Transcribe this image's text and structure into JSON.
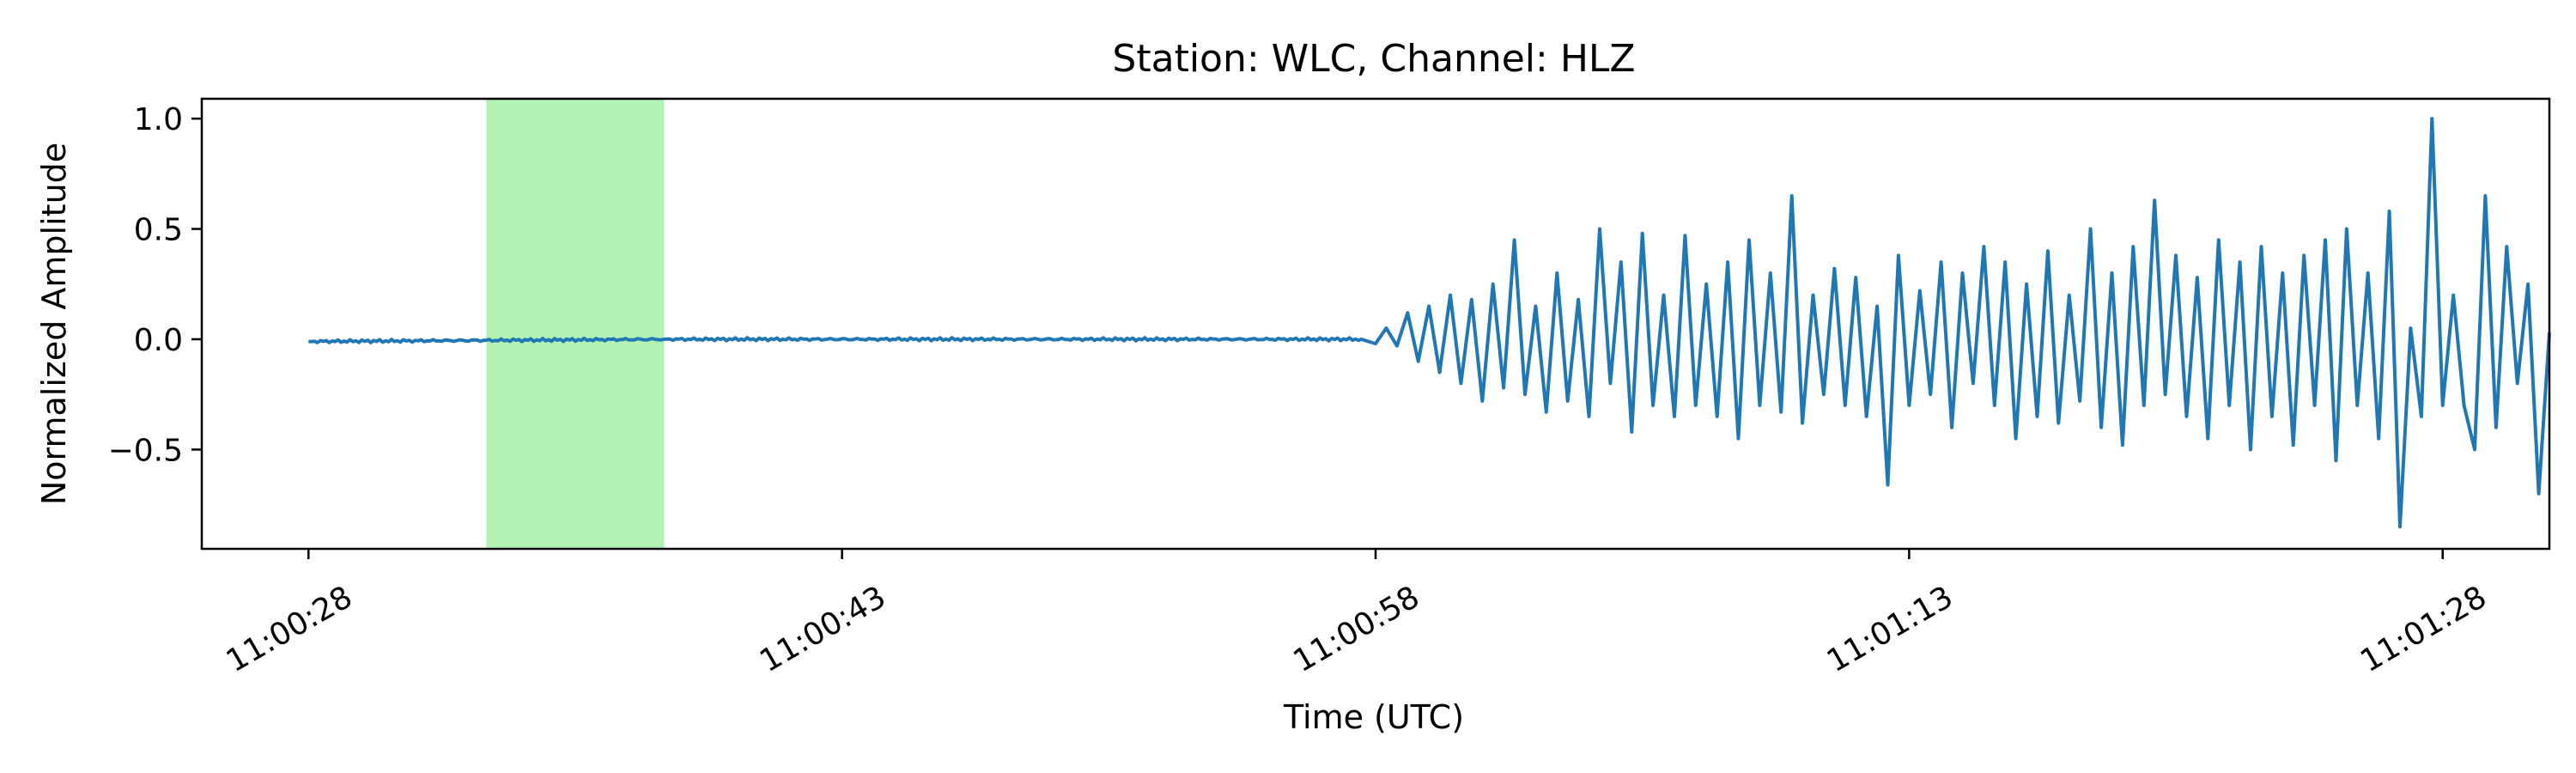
{
  "chart_data": {
    "type": "line",
    "title": "Station: WLC, Channel: HLZ",
    "xlabel": "Time (UTC)",
    "ylabel": "Normalized Amplitude",
    "x_unit": "seconds",
    "x_ticks": [
      {
        "t": 0,
        "label": "11:00:28"
      },
      {
        "t": 15,
        "label": "11:00:43"
      },
      {
        "t": 30,
        "label": "11:00:58"
      },
      {
        "t": 45,
        "label": "11:01:13"
      },
      {
        "t": 60,
        "label": "11:01:28"
      }
    ],
    "y_ticks": [
      {
        "v": 1.0,
        "label": "1.0"
      },
      {
        "v": 0.5,
        "label": "0.5"
      },
      {
        "v": 0.0,
        "label": "0.0"
      },
      {
        "v": -0.5,
        "label": "−0.5"
      }
    ],
    "xlim": [
      "11:00:25",
      "11:01:31"
    ],
    "ylim": [
      -0.95,
      1.09
    ],
    "grid": false,
    "highlight": {
      "x_start": "11:00:33",
      "x_end": "11:00:38",
      "color": "#b2f2b2"
    },
    "series": [
      {
        "color": "#1f77b4",
        "points": [
          [
            "11:00:28.0",
            -0.01
          ],
          [
            "11:00:38.0",
            0.0
          ],
          [
            "11:00:57.6",
            0.0
          ],
          [
            "11:00:58.0",
            -0.02
          ],
          [
            "11:00:58.3",
            0.05
          ],
          [
            "11:00:58.6",
            -0.03
          ],
          [
            "11:00:58.9",
            0.12
          ],
          [
            "11:00:59.2",
            -0.1
          ],
          [
            "11:00:59.5",
            0.15
          ],
          [
            "11:00:59.8",
            -0.15
          ],
          [
            "11:01:00.1",
            0.2
          ],
          [
            "11:01:00.4",
            -0.2
          ],
          [
            "11:01:00.7",
            0.18
          ],
          [
            "11:01:01.0",
            -0.28
          ],
          [
            "11:01:01.3",
            0.25
          ],
          [
            "11:01:01.6",
            -0.22
          ],
          [
            "11:01:01.9",
            0.45
          ],
          [
            "11:01:02.2",
            -0.25
          ],
          [
            "11:01:02.5",
            0.15
          ],
          [
            "11:01:02.8",
            -0.33
          ],
          [
            "11:01:03.1",
            0.3
          ],
          [
            "11:01:03.4",
            -0.28
          ],
          [
            "11:01:03.7",
            0.18
          ],
          [
            "11:01:04.0",
            -0.35
          ],
          [
            "11:01:04.3",
            0.5
          ],
          [
            "11:01:04.6",
            -0.2
          ],
          [
            "11:01:04.9",
            0.35
          ],
          [
            "11:01:05.2",
            -0.42
          ],
          [
            "11:01:05.5",
            0.48
          ],
          [
            "11:01:05.8",
            -0.3
          ],
          [
            "11:01:06.1",
            0.2
          ],
          [
            "11:01:06.4",
            -0.35
          ],
          [
            "11:01:06.7",
            0.47
          ],
          [
            "11:01:07.0",
            -0.3
          ],
          [
            "11:01:07.3",
            0.25
          ],
          [
            "11:01:07.6",
            -0.35
          ],
          [
            "11:01:07.9",
            0.35
          ],
          [
            "11:01:08.2",
            -0.45
          ],
          [
            "11:01:08.5",
            0.45
          ],
          [
            "11:01:08.8",
            -0.3
          ],
          [
            "11:01:09.1",
            0.3
          ],
          [
            "11:01:09.4",
            -0.33
          ],
          [
            "11:01:09.7",
            0.65
          ],
          [
            "11:01:10.0",
            -0.38
          ],
          [
            "11:01:10.3",
            0.2
          ],
          [
            "11:01:10.6",
            -0.25
          ],
          [
            "11:01:10.9",
            0.32
          ],
          [
            "11:01:11.2",
            -0.3
          ],
          [
            "11:01:11.5",
            0.28
          ],
          [
            "11:01:11.8",
            -0.35
          ],
          [
            "11:01:12.1",
            0.15
          ],
          [
            "11:01:12.4",
            -0.66
          ],
          [
            "11:01:12.7",
            0.38
          ],
          [
            "11:01:13.0",
            -0.3
          ],
          [
            "11:01:13.3",
            0.22
          ],
          [
            "11:01:13.6",
            -0.25
          ],
          [
            "11:01:13.9",
            0.35
          ],
          [
            "11:01:14.2",
            -0.4
          ],
          [
            "11:01:14.5",
            0.3
          ],
          [
            "11:01:14.8",
            -0.2
          ],
          [
            "11:01:15.1",
            0.42
          ],
          [
            "11:01:15.4",
            -0.3
          ],
          [
            "11:01:15.7",
            0.35
          ],
          [
            "11:01:16.0",
            -0.45
          ],
          [
            "11:01:16.3",
            0.25
          ],
          [
            "11:01:16.6",
            -0.35
          ],
          [
            "11:01:16.9",
            0.4
          ],
          [
            "11:01:17.2",
            -0.38
          ],
          [
            "11:01:17.5",
            0.2
          ],
          [
            "11:01:17.8",
            -0.28
          ],
          [
            "11:01:18.1",
            0.5
          ],
          [
            "11:01:18.4",
            -0.4
          ],
          [
            "11:01:18.7",
            0.3
          ],
          [
            "11:01:19.0",
            -0.48
          ],
          [
            "11:01:19.3",
            0.42
          ],
          [
            "11:01:19.6",
            -0.3
          ],
          [
            "11:01:19.9",
            0.63
          ],
          [
            "11:01:20.2",
            -0.25
          ],
          [
            "11:01:20.5",
            0.38
          ],
          [
            "11:01:20.8",
            -0.35
          ],
          [
            "11:01:21.1",
            0.28
          ],
          [
            "11:01:21.4",
            -0.45
          ],
          [
            "11:01:21.7",
            0.45
          ],
          [
            "11:01:22.0",
            -0.3
          ],
          [
            "11:01:22.3",
            0.35
          ],
          [
            "11:01:22.6",
            -0.5
          ],
          [
            "11:01:22.9",
            0.42
          ],
          [
            "11:01:23.2",
            -0.35
          ],
          [
            "11:01:23.5",
            0.3
          ],
          [
            "11:01:23.8",
            -0.48
          ],
          [
            "11:01:24.1",
            0.38
          ],
          [
            "11:01:24.4",
            -0.3
          ],
          [
            "11:01:24.7",
            0.45
          ],
          [
            "11:01:25.0",
            -0.55
          ],
          [
            "11:01:25.3",
            0.5
          ],
          [
            "11:01:25.6",
            -0.3
          ],
          [
            "11:01:25.9",
            0.3
          ],
          [
            "11:01:26.2",
            -0.45
          ],
          [
            "11:01:26.5",
            0.58
          ],
          [
            "11:01:26.8",
            -0.85
          ],
          [
            "11:01:27.1",
            0.05
          ],
          [
            "11:01:27.4",
            -0.35
          ],
          [
            "11:01:27.7",
            1.0
          ],
          [
            "11:01:28.0",
            -0.3
          ],
          [
            "11:01:28.3",
            0.2
          ],
          [
            "11:01:28.6",
            -0.3
          ],
          [
            "11:01:28.9",
            -0.5
          ],
          [
            "11:01:29.2",
            0.65
          ],
          [
            "11:01:29.5",
            -0.4
          ],
          [
            "11:01:29.8",
            0.42
          ],
          [
            "11:01:30.1",
            -0.2
          ],
          [
            "11:01:30.4",
            0.25
          ],
          [
            "11:01:30.7",
            -0.7
          ],
          [
            "11:01:31.0",
            0.03
          ]
        ]
      }
    ]
  }
}
